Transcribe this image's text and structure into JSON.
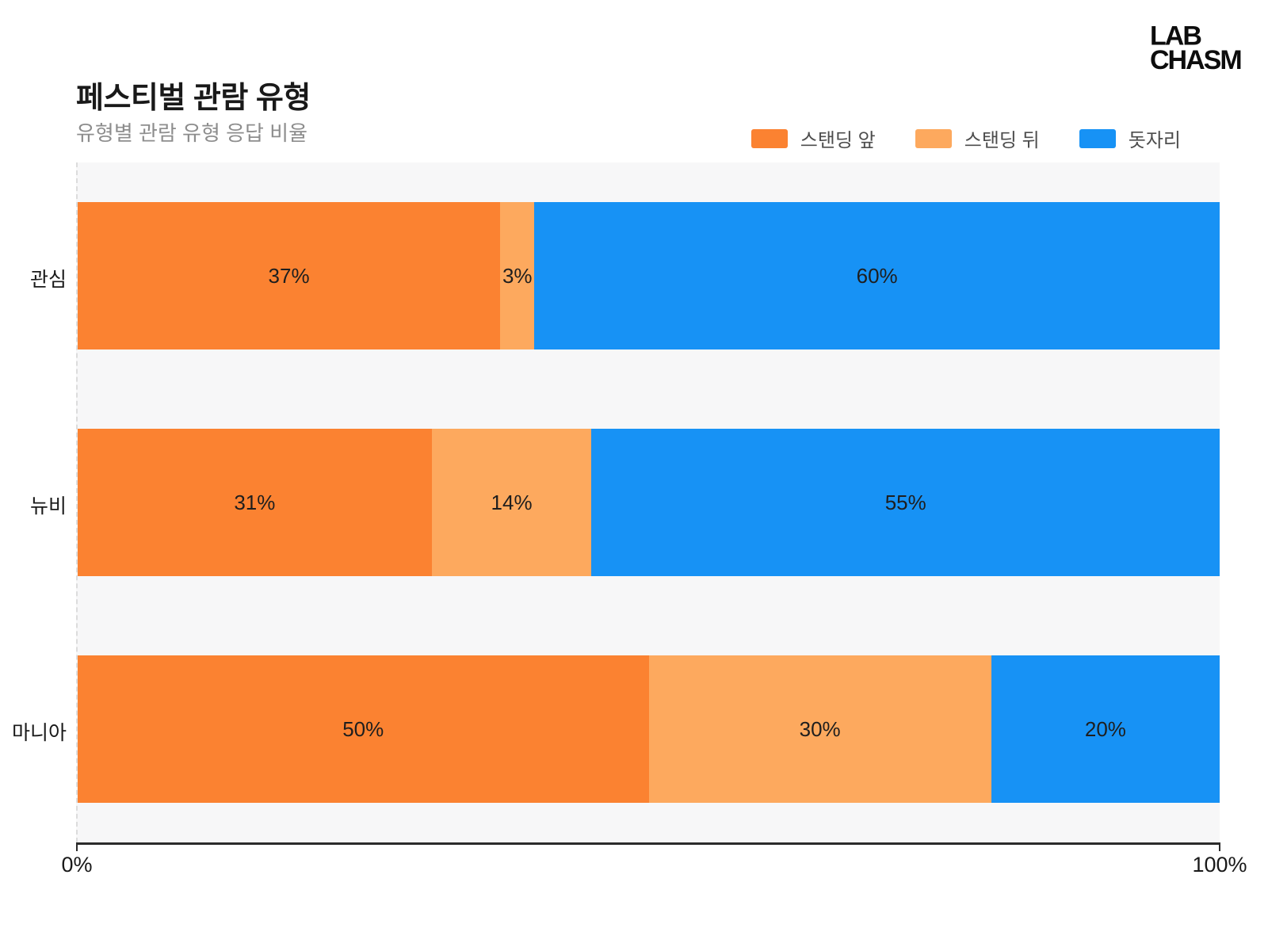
{
  "logo": {
    "line1": "LAB",
    "line2": "CHASM"
  },
  "chart_data": {
    "type": "bar",
    "variant": "horizontal-stacked-100",
    "title": "페스티벌 관람 유형",
    "subtitle": "유형별 관람 유형 응답 비율",
    "categories": [
      "관심",
      "뉴비",
      "마니아"
    ],
    "series": [
      {
        "name": "스탠딩 앞",
        "color": "#FB8231",
        "values": [
          37,
          31,
          50
        ]
      },
      {
        "name": "스탠딩 뒤",
        "color": "#FDA95E",
        "values": [
          3,
          14,
          30
        ]
      },
      {
        "name": "돗자리",
        "color": "#1792F5",
        "values": [
          60,
          55,
          20
        ]
      }
    ],
    "value_suffix": "%",
    "xlim": [
      0,
      100
    ],
    "x_ticks": [
      "0%",
      "100%"
    ],
    "legend_position": "top-right",
    "grid": "left-edge-dashed",
    "plot_background": "#F7F7F8",
    "colors": {
      "title": "#191919",
      "subtitle": "#8D8D8D",
      "axis": "#2B2B2B",
      "bar_label": "#1E1E1E"
    }
  }
}
